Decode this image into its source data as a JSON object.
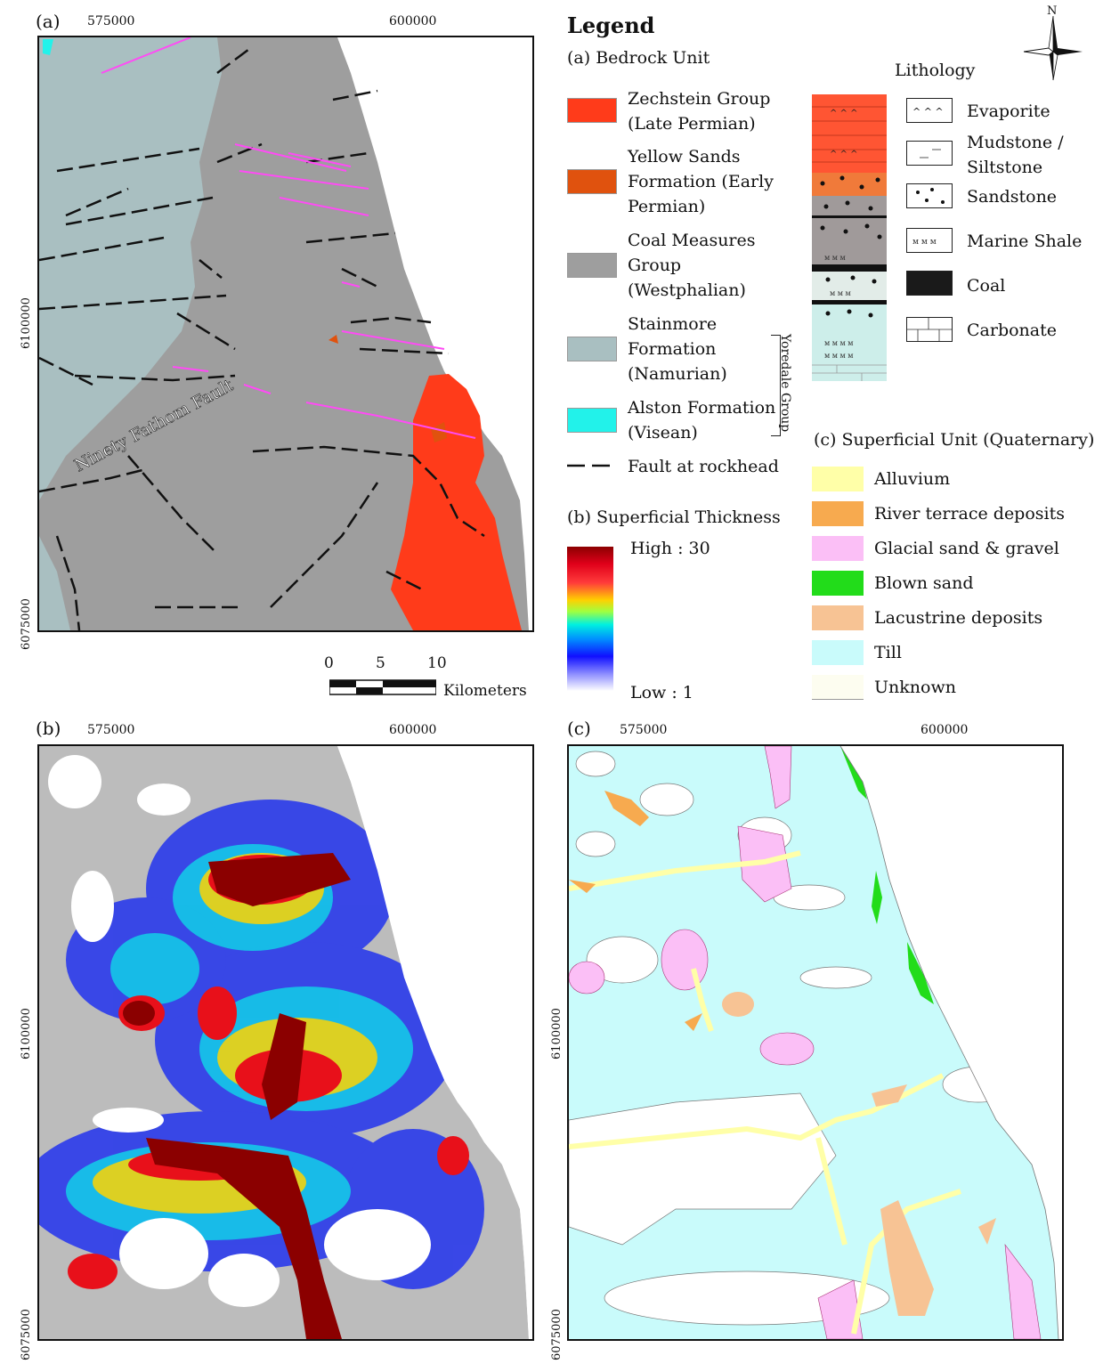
{
  "panels": {
    "a": {
      "label": "(a)",
      "x_ticks": [
        "575000",
        "600000"
      ],
      "y_ticks": [
        "6100000",
        "6075000"
      ],
      "annotation": "Ninety Fathom Fault",
      "scalebar": {
        "values": [
          "0",
          "5",
          "10"
        ],
        "unit": "Kilometers"
      }
    },
    "b": {
      "label": "(b)",
      "x_ticks": [
        "575000",
        "600000"
      ],
      "y_ticks": [
        "6100000",
        "6075000"
      ]
    },
    "c": {
      "label": "(c)",
      "x_ticks": [
        "575000",
        "600000"
      ],
      "y_ticks": [
        "6100000",
        "6075000"
      ]
    }
  },
  "compass": {
    "north": "N"
  },
  "legend": {
    "title": "Legend",
    "bedrock": {
      "heading": "(a) Bedrock Unit",
      "items": [
        {
          "lines": [
            "Zechstein Group",
            "(Late Permian)"
          ],
          "color": "#ff3b1a"
        },
        {
          "lines": [
            "Yellow Sands",
            "Formation (Early",
            "Permian)"
          ],
          "color": "#e0520e"
        },
        {
          "lines": [
            "Coal Measures",
            "Group",
            "(Westphalian)"
          ],
          "color": "#9e9e9e"
        },
        {
          "lines": [
            "Stainmore",
            "Formation",
            "(Namurian)"
          ],
          "color": "#a9bfc1"
        },
        {
          "lines": [
            "Alston Formation",
            "(Visean)"
          ],
          "color": "#22f2ea"
        }
      ],
      "fault_label": "Fault at rockhead",
      "group_label": "Yoredale Group"
    },
    "thickness": {
      "heading": "(b) Superficial Thickness",
      "high": "High : 30",
      "low": "Low : 1"
    },
    "lithology": {
      "heading": "Lithology",
      "items": [
        {
          "lines": [
            "Evaporite"
          ],
          "pattern": "evaporite"
        },
        {
          "lines": [
            "Mudstone /",
            "Siltstone"
          ],
          "pattern": "mudstone"
        },
        {
          "lines": [
            "Sandstone"
          ],
          "pattern": "sandstone"
        },
        {
          "lines": [
            "Marine Shale"
          ],
          "pattern": "shale"
        },
        {
          "lines": [
            "Coal"
          ],
          "pattern": "coal"
        },
        {
          "lines": [
            "Carbonate"
          ],
          "pattern": "carbonate"
        }
      ]
    },
    "superficial": {
      "heading": "(c) Superficial Unit (Quaternary)",
      "items": [
        {
          "label": "Alluvium",
          "color": "#ffffa8"
        },
        {
          "label": "River terrace deposits",
          "color": "#f7aa4f"
        },
        {
          "label": "Glacial sand & gravel",
          "color": "#fbbff6"
        },
        {
          "label": "Blown sand",
          "color": "#22dc1a"
        },
        {
          "label": "Lacustrine deposits",
          "color": "#f7c394"
        },
        {
          "label": "Till",
          "color": "#c9fbfb"
        },
        {
          "label": "Unknown",
          "color": "#fdfdf0"
        }
      ]
    }
  }
}
